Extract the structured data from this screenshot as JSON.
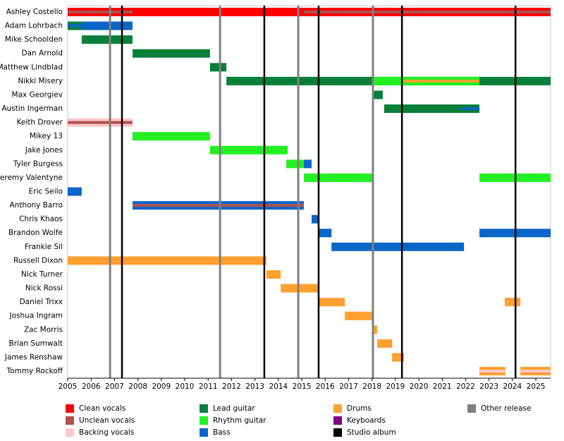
{
  "chart_data": {
    "type": "timeline",
    "legend": [
      {
        "name": "Clean vocals",
        "color": "#ff0000"
      },
      {
        "name": "Unclean vocals",
        "color": "#b05050"
      },
      {
        "name": "Backing vocals",
        "color": "#ffc8c8"
      },
      {
        "name": "Lead guitar",
        "color": "#08803a"
      },
      {
        "name": "Rhythm guitar",
        "color": "#22f022"
      },
      {
        "name": "Bass",
        "color": "#0a66c8"
      },
      {
        "name": "Drums",
        "color": "#ffa030"
      },
      {
        "name": "Keyboards",
        "color": "#800080"
      },
      {
        "name": "Studio album",
        "color": "#000000"
      },
      {
        "name": "Other release",
        "color": "#808080"
      }
    ],
    "studio_albums": [
      2007.32,
      2013.4,
      2015.72,
      2019.28,
      2024.13
    ],
    "other_releases": [
      2006.81,
      2011.51,
      2014.85,
      2018.04
    ],
    "members": [
      {
        "name": "Ashley Costello",
        "periods": [
          {
            "role": 0,
            "style": "full",
            "start": 2005,
            "end": 2025.63
          },
          {
            "role": 1,
            "style": "stripe",
            "start": 2005,
            "end": 2007.77
          },
          {
            "role": 1,
            "style": "stripe",
            "start": 2015.09,
            "end": 2025.63
          }
        ]
      },
      {
        "name": "Adam Lohrbach",
        "periods": [
          {
            "role": 3,
            "style": "full",
            "start": 2005,
            "end": 2005.6
          },
          {
            "role": 5,
            "style": "full",
            "start": 2005.6,
            "end": 2007.77
          },
          {
            "role": 5,
            "style": "stripe",
            "start": 2005,
            "end": 2005.6
          }
        ]
      },
      {
        "name": "Mike Schoolden",
        "periods": [
          {
            "role": 3,
            "style": "full",
            "start": 2005.6,
            "end": 2007.77
          }
        ]
      },
      {
        "name": "Dan Arnold",
        "periods": [
          {
            "role": 3,
            "style": "full",
            "start": 2007.77,
            "end": 2011.08
          }
        ]
      },
      {
        "name": "Matthew Lindblad",
        "periods": [
          {
            "role": 3,
            "style": "full",
            "start": 2011.08,
            "end": 2011.78
          }
        ]
      },
      {
        "name": "Nikki Misery",
        "periods": [
          {
            "role": 3,
            "style": "full",
            "start": 2011.78,
            "end": 2025.63
          },
          {
            "role": 4,
            "style": "full",
            "start": 2018.01,
            "end": 2022.59
          },
          {
            "role": 6,
            "style": "stripe",
            "start": 2019.34,
            "end": 2022.59
          }
        ]
      },
      {
        "name": "Max Georgiev",
        "periods": [
          {
            "role": 3,
            "style": "full",
            "start": 2018.01,
            "end": 2018.46
          }
        ]
      },
      {
        "name": "Austin Ingerman",
        "periods": [
          {
            "role": 3,
            "style": "full",
            "start": 2018.52,
            "end": 2022.59
          },
          {
            "role": 5,
            "style": "stripe",
            "start": 2021.84,
            "end": 2022.59
          }
        ]
      },
      {
        "name": "Keith Drover",
        "periods": [
          {
            "role": 2,
            "style": "full",
            "start": 2005,
            "end": 2007.77
          },
          {
            "role": 1,
            "style": "stripe",
            "start": 2005,
            "end": 2007.77
          }
        ]
      },
      {
        "name": "Mikey 13",
        "periods": [
          {
            "role": 4,
            "style": "full",
            "start": 2007.77,
            "end": 2011.08
          }
        ]
      },
      {
        "name": "Jake Jones",
        "periods": [
          {
            "role": 4,
            "style": "full",
            "start": 2011.08,
            "end": 2014.4
          }
        ]
      },
      {
        "name": "Tyler Burgess",
        "periods": [
          {
            "role": 4,
            "style": "full",
            "start": 2014.34,
            "end": 2015.09
          },
          {
            "role": 5,
            "style": "full",
            "start": 2015.09,
            "end": 2015.42
          }
        ]
      },
      {
        "name": "Jeremy Valentyne",
        "periods": [
          {
            "role": 4,
            "style": "full",
            "start": 2015.09,
            "end": 2018.04
          },
          {
            "role": 4,
            "style": "full",
            "start": 2022.59,
            "end": 2025.63
          }
        ]
      },
      {
        "name": "Eric Seilo",
        "periods": [
          {
            "role": 5,
            "style": "full",
            "start": 2005,
            "end": 2005.6
          }
        ]
      },
      {
        "name": "Anthony Barro",
        "periods": [
          {
            "role": 5,
            "style": "full",
            "start": 2007.77,
            "end": 2015.09
          },
          {
            "role": 1,
            "style": "stripe",
            "start": 2007.77,
            "end": 2015.09
          }
        ]
      },
      {
        "name": "Chris Khaos",
        "periods": [
          {
            "role": 5,
            "style": "full",
            "start": 2015.42,
            "end": 2015.72
          }
        ]
      },
      {
        "name": "Brandon Wolfe",
        "periods": [
          {
            "role": 5,
            "style": "full",
            "start": 2015.72,
            "end": 2016.27
          },
          {
            "role": 5,
            "style": "full",
            "start": 2022.59,
            "end": 2025.63
          }
        ]
      },
      {
        "name": "Frankie Sil",
        "periods": [
          {
            "role": 5,
            "style": "full",
            "start": 2016.27,
            "end": 2021.93
          }
        ]
      },
      {
        "name": "Russell Dixon",
        "periods": [
          {
            "role": 6,
            "style": "full",
            "start": 2005,
            "end": 2013.49
          }
        ]
      },
      {
        "name": "Nick Turner",
        "periods": [
          {
            "role": 6,
            "style": "full",
            "start": 2013.49,
            "end": 2014.1
          }
        ]
      },
      {
        "name": "Nick Rossi",
        "periods": [
          {
            "role": 6,
            "style": "full",
            "start": 2014.1,
            "end": 2015.72
          }
        ]
      },
      {
        "name": "Daniel Trixx",
        "periods": [
          {
            "role": 6,
            "style": "full",
            "start": 2015.72,
            "end": 2016.84
          },
          {
            "role": 6,
            "style": "full",
            "start": 2023.67,
            "end": 2024.34
          }
        ]
      },
      {
        "name": "Joshua Ingram",
        "periods": [
          {
            "role": 6,
            "style": "full",
            "start": 2016.84,
            "end": 2018.04
          }
        ]
      },
      {
        "name": "Zac Morris",
        "periods": [
          {
            "role": 6,
            "style": "full",
            "start": 2018.01,
            "end": 2018.22
          }
        ]
      },
      {
        "name": "Brian Sumwalt",
        "periods": [
          {
            "role": 6,
            "style": "full",
            "start": 2018.22,
            "end": 2018.86
          }
        ]
      },
      {
        "name": "James Renshaw",
        "periods": [
          {
            "role": 6,
            "style": "full",
            "start": 2018.86,
            "end": 2019.37
          }
        ]
      },
      {
        "name": "Tommy Rockoff",
        "periods": [
          {
            "role": 6,
            "style": "full",
            "start": 2022.59,
            "end": 2023.7
          },
          {
            "role": 2,
            "style": "stripe",
            "start": 2022.59,
            "end": 2023.7
          },
          {
            "role": 6,
            "style": "full",
            "start": 2024.34,
            "end": 2025.63
          },
          {
            "role": 2,
            "style": "stripe",
            "start": 2024.34,
            "end": 2025.63
          }
        ]
      }
    ],
    "xlim": [
      2005,
      2025.63
    ],
    "xticks": [
      2005,
      2006,
      2007,
      2008,
      2009,
      2010,
      2011,
      2012,
      2013,
      2014,
      2015,
      2016,
      2017,
      2018,
      2019,
      2020,
      2021,
      2022,
      2023,
      2024,
      2025
    ]
  }
}
